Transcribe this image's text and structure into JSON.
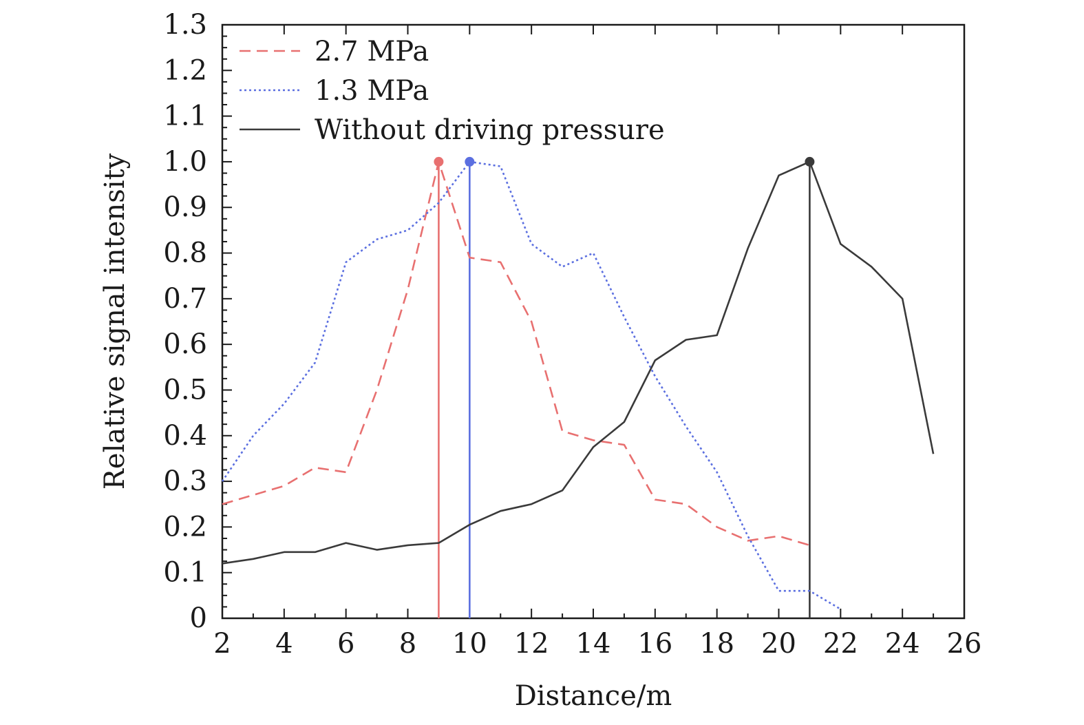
{
  "chart_data": {
    "type": "line",
    "title": "",
    "xlabel": "Distance/m",
    "ylabel": "Relative signal intensity",
    "xlim": [
      2,
      26
    ],
    "ylim": [
      0,
      1.3
    ],
    "x_ticks": [
      "2",
      "4",
      "6",
      "8",
      "10",
      "12",
      "14",
      "16",
      "18",
      "20",
      "22",
      "24",
      "26"
    ],
    "y_ticks": [
      "0",
      "0.1",
      "0.2",
      "0.3",
      "0.4",
      "0.5",
      "0.6",
      "0.7",
      "0.8",
      "0.9",
      "1.0",
      "1.1",
      "1.2",
      "1.3"
    ],
    "grid": false,
    "legend_position": "top-left",
    "series": [
      {
        "name": "2.7 MPa",
        "color": "#e87070",
        "style": "dashed",
        "x": [
          2,
          3,
          4,
          5,
          6,
          7,
          8,
          9,
          10,
          11,
          12,
          13,
          14,
          15,
          16,
          17,
          18,
          19,
          20,
          21
        ],
        "y": [
          0.25,
          0.27,
          0.29,
          0.33,
          0.32,
          0.5,
          0.72,
          1.0,
          0.79,
          0.78,
          0.65,
          0.41,
          0.39,
          0.38,
          0.26,
          0.25,
          0.2,
          0.17,
          0.18,
          0.16
        ],
        "peak": {
          "x": 9,
          "y": 1.0
        }
      },
      {
        "name": "1.3 MPa",
        "color": "#5b6fe0",
        "style": "dotted",
        "x": [
          2,
          3,
          4,
          5,
          6,
          7,
          8,
          9,
          10,
          11,
          12,
          13,
          14,
          15,
          16,
          17,
          18,
          19,
          20,
          21,
          22
        ],
        "y": [
          0.3,
          0.4,
          0.47,
          0.56,
          0.78,
          0.83,
          0.85,
          0.91,
          1.0,
          0.99,
          0.82,
          0.77,
          0.8,
          0.66,
          0.53,
          0.42,
          0.32,
          0.18,
          0.06,
          0.06,
          0.02
        ],
        "peak": {
          "x": 10,
          "y": 1.0
        }
      },
      {
        "name": "Without driving pressure",
        "color": "#3a3a3a",
        "style": "solid",
        "x": [
          2,
          3,
          4,
          5,
          6,
          7,
          8,
          9,
          10,
          11,
          12,
          13,
          14,
          15,
          16,
          17,
          18,
          19,
          20,
          21,
          22,
          23,
          24,
          25
        ],
        "y": [
          0.12,
          0.13,
          0.145,
          0.145,
          0.165,
          0.15,
          0.16,
          0.165,
          0.205,
          0.235,
          0.25,
          0.28,
          0.375,
          0.43,
          0.565,
          0.61,
          0.62,
          0.81,
          0.97,
          1.0,
          0.82,
          0.77,
          0.7,
          0.36
        ],
        "peak": {
          "x": 21,
          "y": 1.0
        }
      }
    ]
  }
}
